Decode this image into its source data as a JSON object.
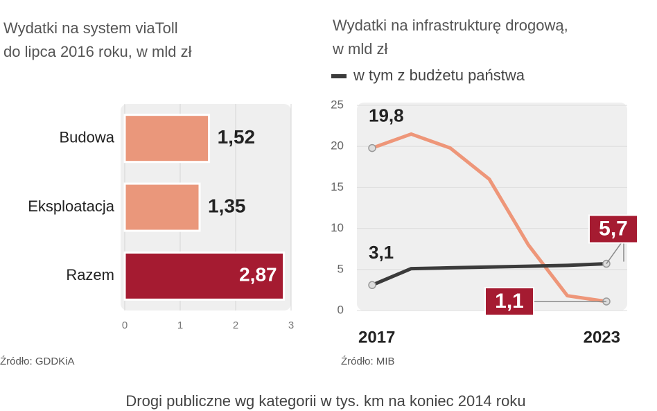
{
  "caption": "Drogi publiczne wg kategorii w tys. km na koniec 2014 roku",
  "chart_data": [
    {
      "type": "hbar",
      "title": [
        "Wydatki na system viaToll",
        "do lipca 2016 roku, w mld zł"
      ],
      "categories": [
        "Budowa",
        "Eksploatacja",
        "Razem"
      ],
      "values": [
        1.52,
        1.35,
        2.87
      ],
      "value_labels": [
        "1,52",
        "1,35",
        "2,87"
      ],
      "colors": [
        "#ea977b",
        "#ea977b",
        "#a51b31"
      ],
      "xlim": [
        0,
        3
      ],
      "xticks": [
        0,
        1,
        2,
        3
      ],
      "grid": true,
      "source": "Źródło: GDDKiA"
    },
    {
      "type": "line",
      "title": [
        "Wydatki na infrastrukturę drogową,",
        "w mld zł"
      ],
      "x": [
        "2017",
        null,
        null,
        null,
        null,
        null,
        "2023"
      ],
      "series": [
        {
          "color": "#ee9679",
          "values": [
            19.8,
            21.5,
            19.8,
            16,
            8,
            1.8,
            1.1
          ],
          "value_labels": [
            "19,8",
            null,
            null,
            null,
            null,
            null,
            "1,1"
          ]
        },
        {
          "name": "w tym z budżetu państwa",
          "color": "#3b3b3b",
          "values": [
            3.1,
            5.1,
            5.2,
            5.3,
            5.4,
            5.5,
            5.7
          ],
          "value_labels": [
            "3,1",
            null,
            null,
            null,
            null,
            null,
            "5,7"
          ]
        }
      ],
      "ylim": [
        0,
        25
      ],
      "yticks": [
        0,
        5,
        10,
        15,
        20,
        25
      ],
      "grid": true,
      "source": "Źródło: MIB"
    }
  ]
}
